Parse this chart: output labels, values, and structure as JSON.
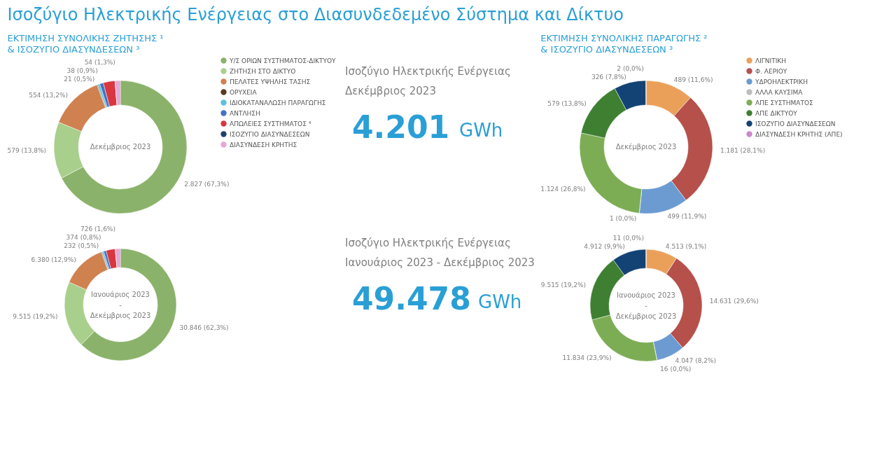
{
  "chart_data": [
    {
      "type": "other",
      "title": "Ισοζύγιο Ηλεκτρικής Ενέργειας στο Διασυνδεδεμένο Σύστημα και Δίκτυο",
      "annotations": [
        "Ισοζύγιο Ηλεκτρικής Ενέργειας",
        "Δεκέμβριος 2023",
        "4.201",
        "GWh",
        "Ισοζύγιο Ηλεκτρικής Ενέργειας",
        "Ιανουάριος 2023 - Δεκέμβριος 2023",
        "49.478",
        "GWh"
      ]
    },
    {
      "type": "donut",
      "title": "ΕΚΤΙΜΗΣΗ ΣΥΝΟΛΙΚΗΣ ΖΗΤΗΣΗΣ ¹",
      "subtitle": "& ΙΣΟΖΥΓΙΟ ΔΙΑΣΥΝΔΕΣΕΩΝ ³",
      "annotations": [
        "Δεκέμβριος 2023"
      ],
      "legend": "right",
      "categories": [
        "Υ/Σ ΟΡΙΩΝ ΣΥΣΤΗΜΑΤΟΣ-ΔΙΚΤΥΟΥ",
        "ΖΗΤΗΣΗ ΣΤΟ ΔΙΚΤΥΟ",
        "ΠΕΛΑΤΕΣ ΥΨΗΛΗΣ ΤΑΣΗΣ",
        "ΟΡΥΧΕΙΑ",
        "ΙΔΙΟΚΑΤΑΝΑΛΩΣΗ ΠΑΡΑΓΩΓΗΣ",
        "ΑΝΤΛΗΣΗ",
        "ΑΠΩΛΕΙΕΣ ΣΥΣΤΗΜΑΤΟΣ ⁴",
        "ΙΣΟΖΥΓΙΟ ΔΙΑΣΥΝΔΕΣΕΩΝ",
        "ΔΙΑΣΥΝΔΕΣΗ ΚΡΗΤΗΣ"
      ],
      "values": [
        2827,
        579,
        554,
        8,
        21,
        38,
        120,
        0,
        54
      ],
      "colors": [
        "#8bb26a",
        "#a9cf8c",
        "#d08150",
        "#5a3a22",
        "#5bc0de",
        "#4472c4",
        "#d9363e",
        "#1f3f6e",
        "#e8a6d8"
      ],
      "value_labels": [
        "2.827 (67,3%)",
        "579 (13,8%)",
        "554 (13,2%)",
        null,
        "21 (0,5%)",
        "38 (0,9%)",
        null,
        null,
        "54 (1,3%)"
      ]
    },
    {
      "type": "donut",
      "annotations": [
        "Ιανουάριος 2023",
        "-",
        "Δεκέμβριος 2023"
      ],
      "categories": [
        null,
        null,
        null,
        null,
        null,
        null,
        null,
        null,
        null
      ],
      "values": [
        30846,
        9515,
        6380,
        100,
        232,
        374,
        1305,
        0,
        726
      ],
      "colors": [
        "#8bb26a",
        "#a9cf8c",
        "#d08150",
        "#5a3a22",
        "#5bc0de",
        "#4472c4",
        "#d9363e",
        "#1f3f6e",
        "#e8a6d8"
      ],
      "value_labels": [
        "30.846 (62,3%)",
        "9.515 (19,2%)",
        "6.380 (12,9%)",
        null,
        "232 (0,5%)",
        "374 (0,8%)",
        null,
        null,
        "726 (1,6%)"
      ]
    },
    {
      "type": "donut",
      "title": "ΕΚΤΙΜΗΣΗ ΣΥΝΟΛΙΚΗΣ ΠΑΡΑΓΩΓΗΣ ²",
      "subtitle": "& ΙΣΟΖΥΓΙΟ ΔΙΑΣΥΝΔΕΣΕΩΝ ³",
      "annotations": [
        "Δεκέμβριος 2023"
      ],
      "legend": "right",
      "categories": [
        "ΛΙΓΝΙΤΙΚΗ",
        "Φ. ΑΕΡΙΟΥ",
        "ΥΔΡΟΗΛΕΚΤΡΙΚΗ",
        "ΑΛΛΑ ΚΑΥΣΙΜΑ",
        "ΑΠΕ ΣΥΣΤΗΜΑΤΟΣ",
        "ΑΠΕ ΔΙΚΤΥΟΥ",
        "ΙΣΟΖΥΓΙΟ ΔΙΑΣΥΝΔΕΣΕΩΝ",
        "ΔΙΑΣΥΝΔΕΣΗ ΚΡΗΤΗΣ (ΑΠΕ)"
      ],
      "values": [
        489,
        1181,
        499,
        1,
        1124,
        579,
        326,
        2
      ],
      "colors": [
        "#eba05a",
        "#b5504b",
        "#6b9bd1",
        "#bdbdbd",
        "#7cad55",
        "#3f7f32",
        "#134375",
        "#cc88cc"
      ],
      "value_labels": [
        "489 (11,6%)",
        "1.181 (28,1%)",
        "499 (11,9%)",
        "1 (0,0%)",
        "1.124 (26,8%)",
        "579 (13,8%)",
        "326 (7,8%)",
        "2 (0,0%)"
      ]
    },
    {
      "type": "donut",
      "annotations": [
        "Ιανουάριος 2023",
        "-",
        "Δεκέμβριος 2023"
      ],
      "categories": [
        null,
        null,
        null,
        null,
        null,
        null,
        null,
        null
      ],
      "values": [
        4513,
        14631,
        4047,
        16,
        11834,
        9515,
        4912,
        11
      ],
      "colors": [
        "#eba05a",
        "#b5504b",
        "#6b9bd1",
        "#bdbdbd",
        "#7cad55",
        "#3f7f32",
        "#134375",
        "#cc88cc"
      ],
      "value_labels": [
        "4.513 (9,1%)",
        "14.631 (29,6%)",
        "4.047 (8,2%)",
        "16 (0,0%)",
        "11.834 (23,9%)",
        "9.515 (19,2%)",
        "4.912 (9,9%)",
        "11 (0,0%)"
      ]
    }
  ]
}
